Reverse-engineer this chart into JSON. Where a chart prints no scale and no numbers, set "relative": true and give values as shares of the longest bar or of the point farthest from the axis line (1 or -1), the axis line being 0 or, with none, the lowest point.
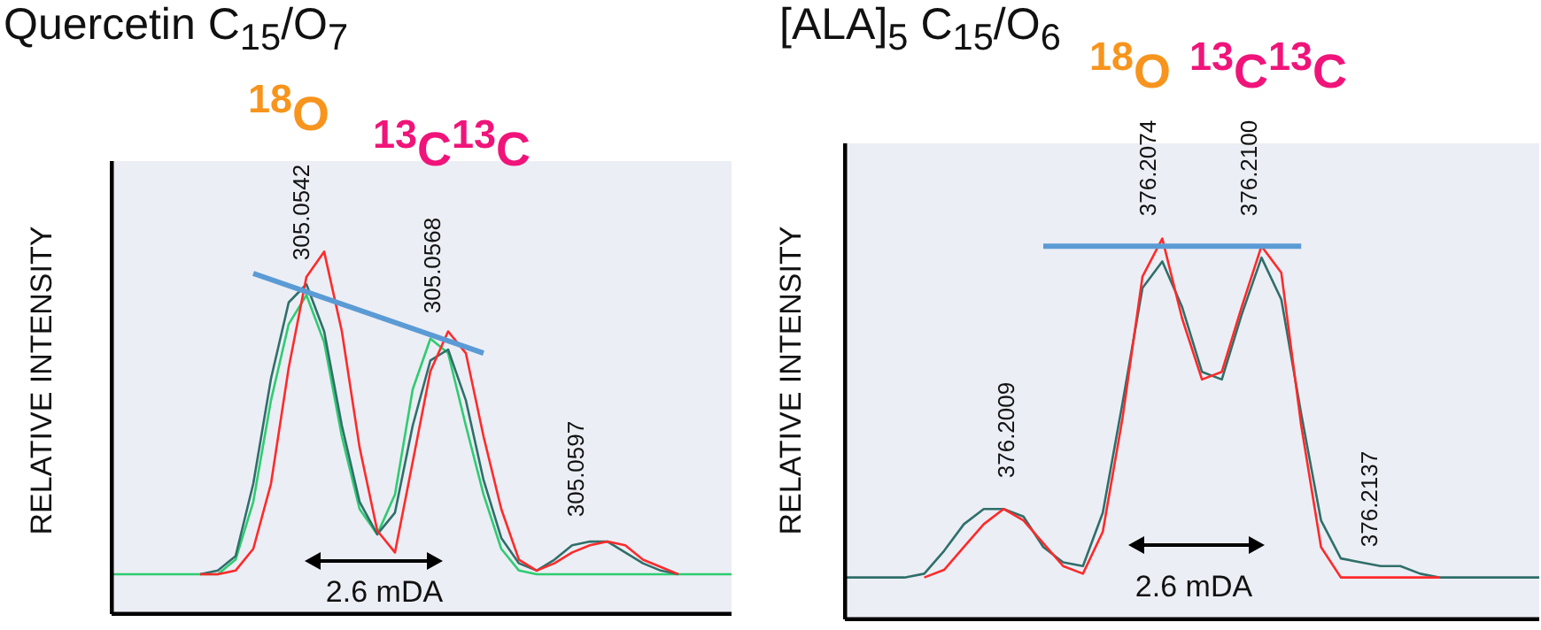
{
  "chart_data": [
    {
      "type": "line",
      "title": "Quercetin C$_{15}$/O$_{7}$",
      "ylabel": "RELATIVE INTENSITY",
      "relative": true,
      "marker": "none",
      "categories": [
        null,
        null,
        null,
        null,
        null,
        null,
        null,
        null,
        null,
        null,
        null,
        null,
        null,
        null,
        null,
        null,
        null,
        null,
        null,
        null,
        null,
        null,
        null,
        null,
        null,
        null,
        null,
        null,
        null,
        null,
        null,
        null,
        null,
        null,
        null,
        null
      ],
      "series": [
        {
          "color": "#2ecc71",
          "values": [
            0.11,
            0.11,
            0.11,
            0.11,
            0.11,
            0.11,
            0.11,
            0.15,
            0.31,
            0.59,
            0.8,
            0.88,
            0.75,
            0.49,
            0.29,
            0.22,
            0.33,
            0.62,
            0.76,
            0.72,
            0.52,
            0.33,
            0.18,
            0.12,
            0.11,
            0.11,
            0.11,
            0.11,
            0.11,
            0.11,
            0.11,
            0.11,
            0.11,
            0.11,
            0.11,
            0.11
          ]
        },
        {
          "color": "#2f6f6a",
          "values": [
            null,
            null,
            null,
            null,
            null,
            0.11,
            0.12,
            0.16,
            0.36,
            0.65,
            0.86,
            0.91,
            0.78,
            0.52,
            0.31,
            0.22,
            0.28,
            0.52,
            0.7,
            0.73,
            0.59,
            0.37,
            0.21,
            0.14,
            0.12,
            0.15,
            0.19,
            0.2,
            0.2,
            0.17,
            0.14,
            0.12,
            0.11,
            null,
            null,
            null
          ]
        },
        {
          "color": "#ff2a2a",
          "values": [
            null,
            null,
            null,
            null,
            null,
            0.11,
            0.11,
            0.12,
            0.18,
            0.36,
            0.68,
            0.93,
            1.0,
            0.78,
            0.46,
            0.23,
            0.17,
            0.42,
            0.67,
            0.78,
            0.72,
            0.49,
            0.29,
            0.15,
            0.12,
            0.14,
            0.17,
            0.19,
            0.2,
            0.19,
            0.15,
            0.13,
            0.11,
            null,
            null,
            null
          ]
        },
        {
          "color": "#5b9bd5",
          "values": [
            null,
            null,
            null,
            null,
            null,
            null,
            null,
            null,
            0.94,
            null,
            null,
            null,
            null,
            null,
            null,
            null,
            null,
            null,
            null,
            null,
            null,
            0.72,
            null,
            null,
            null,
            null,
            null,
            null,
            null,
            null,
            null,
            null,
            null,
            null,
            null,
            null
          ]
        }
      ],
      "annotations": [
        "$^{18}$O",
        "$^{13}$C$^{13}$C",
        "305.0542",
        "305.0568",
        "305.0597",
        "2.6 mDA"
      ]
    },
    {
      "type": "line",
      "title": "[ALA]$_{5}$ C$_{15}$/O$_{6}$",
      "ylabel": "RELATIVE INTENSITY",
      "relative": true,
      "marker": "none",
      "categories": [
        null,
        null,
        null,
        null,
        null,
        null,
        null,
        null,
        null,
        null,
        null,
        null,
        null,
        null,
        null,
        null,
        null,
        null,
        null,
        null,
        null,
        null,
        null,
        null,
        null,
        null,
        null,
        null,
        null,
        null,
        null,
        null,
        null,
        null,
        null,
        null
      ],
      "series": [
        {
          "color": "#2f6f6a",
          "values": [
            0.11,
            0.11,
            0.11,
            0.11,
            0.12,
            0.18,
            0.25,
            0.29,
            0.29,
            0.27,
            0.19,
            0.15,
            0.14,
            0.28,
            0.57,
            0.87,
            0.94,
            0.82,
            0.65,
            0.63,
            0.8,
            0.95,
            0.84,
            0.54,
            0.26,
            0.16,
            0.15,
            0.14,
            0.14,
            0.12,
            0.11,
            0.11,
            0.11,
            0.11,
            0.11,
            0.11
          ]
        },
        {
          "color": "#ff2a2a",
          "values": [
            null,
            null,
            null,
            null,
            0.11,
            0.13,
            0.19,
            0.25,
            0.29,
            0.26,
            0.2,
            0.14,
            0.12,
            0.23,
            0.53,
            0.9,
            1.0,
            0.79,
            0.63,
            0.65,
            0.82,
            0.98,
            0.91,
            0.51,
            0.19,
            0.11,
            0.11,
            0.11,
            0.11,
            0.11,
            0.11,
            null,
            null,
            null,
            null,
            null
          ]
        },
        {
          "color": "#5b9bd5",
          "values": [
            null,
            null,
            null,
            null,
            null,
            null,
            null,
            null,
            null,
            null,
            0.98,
            null,
            null,
            null,
            null,
            null,
            null,
            null,
            null,
            null,
            null,
            null,
            null,
            0.98,
            null,
            null,
            null,
            null,
            null,
            null,
            null,
            null,
            null,
            null,
            null,
            null
          ]
        }
      ],
      "annotations": [
        "$^{18}$O",
        "$^{13}$C$^{13}$C",
        "376.2009",
        "376.2074",
        "376.2100",
        "376.2137",
        "2.6 mDA"
      ]
    }
  ]
}
